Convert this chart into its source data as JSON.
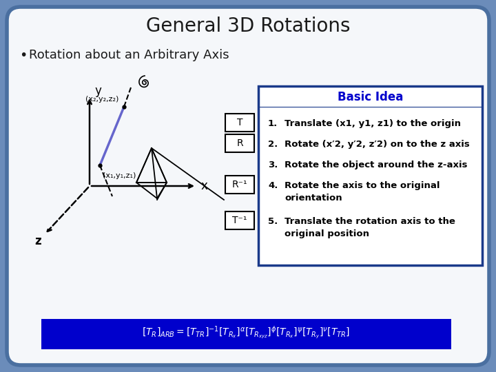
{
  "title": "General 3D Rotations",
  "bullet": "Rotation about an Arbitrary Axis",
  "basic_idea_title": "Basic Idea",
  "steps": [
    {
      "num": "1.",
      "text": "Translate (x1, y1, z1) to the origin"
    },
    {
      "num": "2.",
      "text": "Rotate (x′2, y′2, z′2) on to the z axis"
    },
    {
      "num": "3.",
      "text": "Rotate the object around the z-axis"
    },
    {
      "num": "4.",
      "text": "Rotate the axis to the original\norientation"
    },
    {
      "num": "5.",
      "text": "Translate the rotation axis to the\noriginal position"
    }
  ],
  "matrix_labels": [
    "T",
    "R",
    "R⁻¹",
    "T⁻¹"
  ],
  "axis_labels": [
    "y",
    "x",
    "z"
  ],
  "point1_label": "(x₁,y₁,z₁)",
  "point2_label": "(x₂,y₂,z₂)",
  "bg_color": "#6b8cba",
  "slide_bg": "#f5f7fa",
  "title_color": "#1a1a1a",
  "bullet_color": "#1a1a1a",
  "box_border_color": "#1a3a8a",
  "box_title_color": "#0000cc",
  "axis_line_color": "#5577cc",
  "formula_bg": "#0000cc",
  "formula_text_color": "#ffffff",
  "outer_border_color": "#4a6fa0"
}
